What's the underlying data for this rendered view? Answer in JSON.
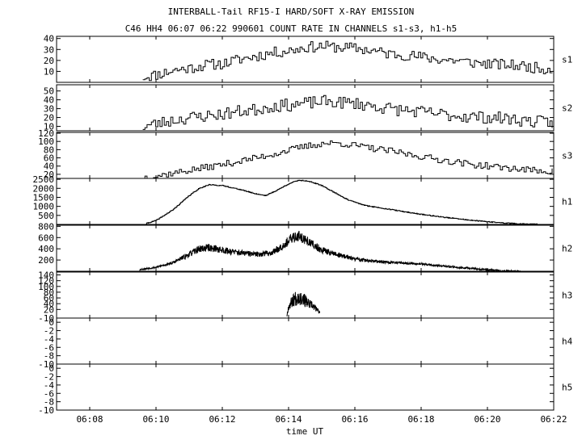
{
  "chart_data": {
    "type": "line",
    "title": "INTERBALL-Tail RF15-I HARD/SOFT X-RAY EMISSION",
    "subtitle": "C46 HH4 06:07 06:22 990601  COUNT RATE IN CHANNELS s1-s3, h1-h5",
    "xlabel": "time UT",
    "x_tick_labels": [
      "06:08",
      "06:10",
      "06:12",
      "06:14",
      "06:16",
      "06:18",
      "06:20",
      "06:22"
    ],
    "xlim_minutes": [
      7,
      22
    ],
    "x_ticks_minutes": [
      8,
      10,
      12,
      14,
      16,
      18,
      20,
      22
    ],
    "panels": [
      {
        "name": "s1",
        "ylim": [
          0,
          42
        ],
        "yticks": [
          10,
          20,
          30,
          40
        ],
        "ytick_labels": [
          "10",
          "20",
          "30",
          "40"
        ],
        "x": [
          9.6,
          10.0,
          10.5,
          11.0,
          11.5,
          12.0,
          12.5,
          13.0,
          13.5,
          14.0,
          14.5,
          15.0,
          15.5,
          16.0,
          16.5,
          17.0,
          17.5,
          18.0,
          18.5,
          19.0,
          19.5,
          20.0,
          20.5,
          21.0,
          21.5,
          22.0
        ],
        "y": [
          5,
          7,
          11,
          13,
          16,
          17,
          21,
          24,
          27,
          29,
          32,
          33,
          32,
          31,
          29,
          26,
          25,
          23,
          21,
          20,
          18,
          17,
          16,
          15,
          13,
          12
        ],
        "noise": 5,
        "seed": 11
      },
      {
        "name": "s2",
        "ylim": [
          5,
          57
        ],
        "yticks": [
          10,
          20,
          30,
          40,
          50
        ],
        "ytick_labels": [
          "10",
          "20",
          "30",
          "40",
          "50"
        ],
        "x": [
          9.6,
          10.0,
          10.5,
          11.0,
          11.5,
          12.0,
          12.5,
          13.0,
          13.5,
          14.0,
          14.5,
          15.0,
          15.5,
          16.0,
          16.5,
          17.0,
          17.5,
          18.0,
          18.5,
          19.0,
          19.5,
          20.0,
          20.5,
          21.0,
          21.5,
          22.0
        ],
        "y": [
          10,
          13,
          17,
          20,
          22,
          24,
          27,
          29,
          33,
          34,
          36,
          38,
          37,
          36,
          33,
          30,
          28,
          26,
          24,
          22,
          21,
          20,
          19,
          17,
          15,
          14
        ],
        "noise": 7,
        "seed": 23
      },
      {
        "name": "s3",
        "ylim": [
          10,
          122
        ],
        "yticks": [
          20,
          40,
          60,
          80,
          100,
          120
        ],
        "ytick_labels": [
          "20",
          "40",
          "60",
          "80",
          "100",
          "120"
        ],
        "x": [
          9.6,
          10.0,
          10.5,
          11.0,
          11.5,
          12.0,
          12.5,
          13.0,
          13.5,
          14.0,
          14.5,
          15.0,
          15.5,
          16.0,
          16.5,
          17.0,
          17.5,
          18.0,
          18.5,
          19.0,
          19.5,
          20.0,
          20.5,
          21.0,
          21.5,
          22.0
        ],
        "y": [
          13,
          16,
          23,
          30,
          37,
          44,
          52,
          60,
          69,
          79,
          88,
          95,
          96,
          90,
          83,
          77,
          70,
          63,
          56,
          50,
          44,
          40,
          36,
          32,
          29,
          27
        ],
        "noise": 8,
        "seed": 37
      },
      {
        "name": "h1",
        "ylim": [
          0,
          2550
        ],
        "yticks": [
          500,
          1000,
          1500,
          2000,
          2500
        ],
        "ytick_labels": [
          "500",
          "1000",
          "1500",
          "2000",
          "2500"
        ],
        "x": [
          9.7,
          10.0,
          10.5,
          11.0,
          11.3,
          11.6,
          12.0,
          12.5,
          13.0,
          13.3,
          13.6,
          14.0,
          14.3,
          14.6,
          15.0,
          15.4,
          15.8,
          16.3,
          17.0,
          17.5,
          18.0,
          18.5,
          19.0,
          19.5,
          20.0,
          20.5,
          21.0,
          21.5
        ],
        "y": [
          50,
          220,
          800,
          1600,
          2000,
          2200,
          2150,
          1950,
          1700,
          1600,
          1850,
          2250,
          2450,
          2400,
          2150,
          1750,
          1350,
          1050,
          850,
          700,
          560,
          440,
          330,
          230,
          150,
          80,
          30,
          10
        ],
        "noise": 25,
        "seed": 41
      },
      {
        "name": "h2",
        "ylim": [
          0,
          820
        ],
        "yticks": [
          200,
          400,
          600,
          800
        ],
        "ytick_labels": [
          "200",
          "400",
          "600",
          "800"
        ],
        "x": [
          9.5,
          10.0,
          10.5,
          11.0,
          11.3,
          11.6,
          12.0,
          12.5,
          13.0,
          13.5,
          13.8,
          14.1,
          14.3,
          14.6,
          15.0,
          15.5,
          16.0,
          16.5,
          17.0,
          17.5,
          18.0,
          18.5,
          19.0,
          19.5,
          20.0,
          20.5,
          21.0
        ],
        "y": [
          30,
          70,
          150,
          300,
          400,
          420,
          380,
          330,
          300,
          330,
          450,
          580,
          640,
          520,
          380,
          290,
          220,
          180,
          160,
          150,
          130,
          100,
          75,
          50,
          25,
          5,
          0
        ],
        "noise": 80,
        "seed": 53
      },
      {
        "name": "h3",
        "ylim": [
          -10,
          150
        ],
        "yticks": [
          -10,
          20,
          40,
          60,
          80,
          100,
          120,
          140
        ],
        "ytick_labels": [
          "-10",
          "20",
          "40",
          "60",
          "80",
          "100",
          "120",
          "140"
        ],
        "x": [
          13.95,
          14.0,
          14.15,
          14.3,
          14.45,
          14.6,
          14.75,
          14.95
        ],
        "y": [
          0,
          30,
          55,
          65,
          55,
          40,
          30,
          10
        ],
        "noise": 40,
        "seed": 67
      },
      {
        "name": "h4",
        "ylim": [
          -10,
          1
        ],
        "yticks": [
          -10,
          -8,
          -6,
          -4,
          -2,
          0
        ],
        "ytick_labels": [
          "-10",
          "-8",
          "-6",
          "-4",
          "-2",
          "0"
        ],
        "x": [],
        "y": [],
        "noise": 0,
        "seed": 1
      },
      {
        "name": "h5",
        "ylim": [
          -10,
          1
        ],
        "yticks": [
          -10,
          -8,
          -6,
          -4,
          -2,
          0
        ],
        "ytick_labels": [
          "-10",
          "-8",
          "-6",
          "-4",
          "-2",
          "0"
        ],
        "x": [],
        "y": [],
        "noise": 0,
        "seed": 1
      }
    ]
  }
}
